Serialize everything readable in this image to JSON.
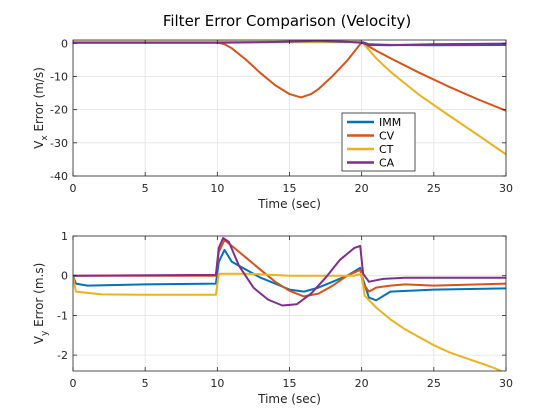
{
  "figure": {
    "title": "Filter Error Comparison (Velocity)"
  },
  "chart_data": [
    {
      "type": "line",
      "title": "Filter Error Comparison (Velocity)",
      "xlabel": "Time (sec)",
      "ylabel_main": "V",
      "ylabel_sub": "x",
      "ylabel_rest": " Error (m/s)",
      "xlim": [
        0,
        30
      ],
      "ylim": [
        -40,
        1
      ],
      "xticks": [
        0,
        5,
        10,
        15,
        20,
        25,
        30
      ],
      "yticks": [
        0,
        -10,
        -20,
        -30,
        -40
      ],
      "grid": true,
      "legend": {
        "placement": "lower-middle-right",
        "entries": [
          "IMM",
          "CV",
          "CT",
          "CA"
        ]
      },
      "series": [
        {
          "name": "IMM",
          "color": "#0072BD",
          "x": [
            0,
            10,
            15,
            19,
            20,
            20.5,
            22,
            25,
            30
          ],
          "y": [
            0.3,
            0.3,
            0.5,
            0.4,
            0.5,
            -0.3,
            -0.5,
            -0.6,
            -0.5
          ]
        },
        {
          "name": "CV",
          "color": "#D95319",
          "x": [
            0,
            10,
            10.5,
            11,
            12,
            13,
            14,
            15,
            15.8,
            16.5,
            17,
            18,
            19,
            20,
            21,
            22,
            24,
            26,
            28,
            30
          ],
          "y": [
            0.3,
            0.3,
            -0.3,
            -1.5,
            -5,
            -9,
            -12.6,
            -15.3,
            -16.3,
            -15.3,
            -13.8,
            -9.8,
            -5.2,
            0.3,
            -2.2,
            -4.5,
            -8.9,
            -13,
            -16.8,
            -20.3
          ]
        },
        {
          "name": "CT",
          "color": "#EDB120",
          "x": [
            0,
            10,
            15,
            19,
            20,
            21,
            22,
            23,
            24,
            26,
            28,
            30
          ],
          "y": [
            0.5,
            0.5,
            0.5,
            0.5,
            0.5,
            -4.5,
            -8.6,
            -12.1,
            -15.6,
            -21.6,
            -27.5,
            -33.5
          ]
        },
        {
          "name": "CA",
          "color": "#7E2F8E",
          "x": [
            0,
            10,
            14,
            17,
            19,
            20,
            20.5,
            22,
            25,
            30
          ],
          "y": [
            0.2,
            0.2,
            0.4,
            0.8,
            0.5,
            0.2,
            -0.5,
            -0.6,
            -0.3,
            -0.1
          ]
        }
      ]
    },
    {
      "type": "line",
      "xlabel": "Time (sec)",
      "ylabel_main": "V",
      "ylabel_sub": "y",
      "ylabel_rest": " Error (m.s)",
      "xlim": [
        0,
        30
      ],
      "ylim": [
        -2.4,
        1
      ],
      "xticks": [
        0,
        5,
        10,
        15,
        20,
        25,
        30
      ],
      "yticks": [
        1,
        0,
        -1,
        -2
      ],
      "grid": true,
      "series": [
        {
          "name": "IMM",
          "color": "#0072BD",
          "x": [
            0,
            0.2,
            1,
            5,
            9.9,
            10.1,
            10.5,
            11,
            12,
            13,
            14,
            15,
            16,
            17,
            18,
            19,
            19.9,
            20.1,
            20.5,
            21,
            22,
            25,
            30
          ],
          "y": [
            0,
            -0.2,
            -0.25,
            -0.22,
            -0.2,
            0.35,
            0.65,
            0.35,
            0.15,
            -0.05,
            -0.2,
            -0.35,
            -0.4,
            -0.3,
            -0.15,
            0,
            0.2,
            -0.1,
            -0.55,
            -0.62,
            -0.4,
            -0.35,
            -0.32
          ]
        },
        {
          "name": "CV",
          "color": "#D95319",
          "x": [
            0,
            9.9,
            10.1,
            10.5,
            11,
            12,
            13,
            14,
            15,
            16,
            17,
            18,
            19,
            19.9,
            20.1,
            20.5,
            21,
            22,
            23,
            25,
            30
          ],
          "y": [
            0,
            0,
            0.6,
            0.9,
            0.75,
            0.45,
            0.15,
            -0.15,
            -0.38,
            -0.52,
            -0.45,
            -0.25,
            0,
            0.15,
            -0.2,
            -0.4,
            -0.3,
            -0.25,
            -0.22,
            -0.25,
            -0.2
          ]
        },
        {
          "name": "CT",
          "color": "#EDB120",
          "x": [
            0,
            0.2,
            2,
            5,
            9.9,
            10.1,
            12,
            15,
            19.5,
            20,
            20.2,
            21,
            22,
            23,
            24,
            25,
            26,
            27,
            28,
            29,
            30
          ],
          "y": [
            0,
            -0.4,
            -0.47,
            -0.48,
            -0.48,
            0.05,
            0.05,
            0,
            0,
            0.05,
            -0.5,
            -0.8,
            -1.1,
            -1.35,
            -1.55,
            -1.75,
            -1.92,
            -2.05,
            -2.17,
            -2.3,
            -2.45
          ]
        },
        {
          "name": "CA",
          "color": "#7E2F8E",
          "x": [
            0,
            9.9,
            10.1,
            10.4,
            10.8,
            11.5,
            12.5,
            13.5,
            14.5,
            15.5,
            16.5,
            17.5,
            18.5,
            19.5,
            19.9,
            20.1,
            20.5,
            21.5,
            23,
            25,
            30
          ],
          "y": [
            0,
            0.02,
            0.7,
            0.95,
            0.85,
            0.25,
            -0.3,
            -0.6,
            -0.75,
            -0.72,
            -0.45,
            -0.05,
            0.4,
            0.7,
            0.75,
            0.05,
            -0.15,
            -0.08,
            -0.05,
            -0.05,
            -0.05
          ]
        }
      ]
    }
  ]
}
